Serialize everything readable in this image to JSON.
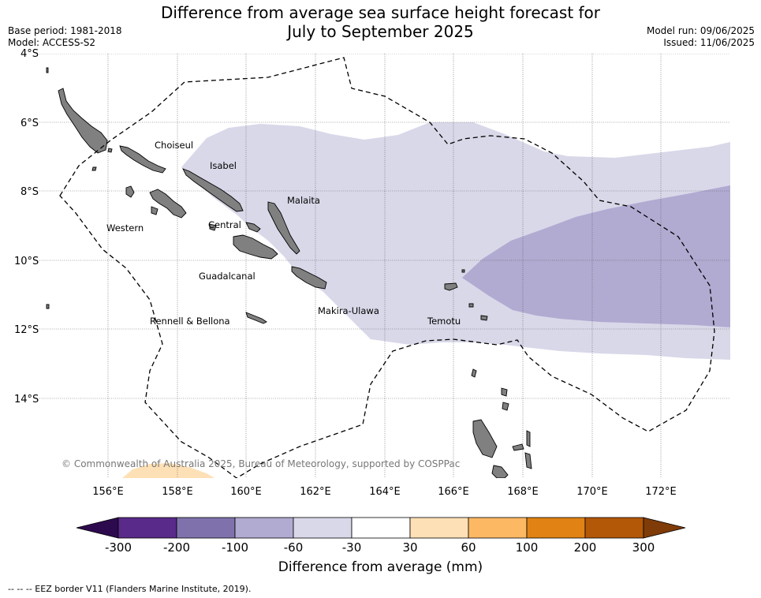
{
  "header": {
    "title_line1": "Difference from average sea surface height forecast for",
    "title_line2": "July to September 2025",
    "base_period": "Base period: 1981-2018",
    "model": "Model: ACCESS-S2",
    "model_run": "Model run: 09/06/2025",
    "issued": "Issued: 11/06/2025"
  },
  "map": {
    "lat_labels": [
      "4°S",
      "6°S",
      "8°S",
      "10°S",
      "12°S",
      "14°S"
    ],
    "lon_labels": [
      "156°E",
      "158°E",
      "160°E",
      "162°E",
      "164°E",
      "166°E",
      "168°E",
      "170°E",
      "172°E"
    ],
    "provinces": [
      "Choiseul",
      "Isabel",
      "Malaita",
      "Western",
      "Central",
      "Guadalcanal",
      "Makira-Ulawa",
      "Rennell & Bellona",
      "Temotu"
    ],
    "copyright": "© Commonwealth of Australia 2025, Bureau of Meteorology, supported by COSPPac",
    "colors": {
      "land": "#808080",
      "band_neg60_neg30": "#d8d8e9",
      "band_neg100_neg60": "#b1aad1",
      "band_30_60": "#fee0b6"
    }
  },
  "colorbar": {
    "ticks": [
      "-300",
      "-200",
      "-100",
      "-60",
      "-30",
      "30",
      "60",
      "100",
      "200",
      "300"
    ],
    "colors": [
      "#5a2a8a",
      "#7f72ac",
      "#b1aad1",
      "#d8d8e9",
      "#ffffff",
      "#fee0b6",
      "#fdb863",
      "#e08214",
      "#b35806"
    ],
    "under_color": "#2d0a4e",
    "over_color": "#7f3b08",
    "label": "Difference from average (mm)"
  },
  "footer": {
    "eez_note": "--  --  -- EEZ border V11 (Flanders Marine Institute, 2019)."
  }
}
